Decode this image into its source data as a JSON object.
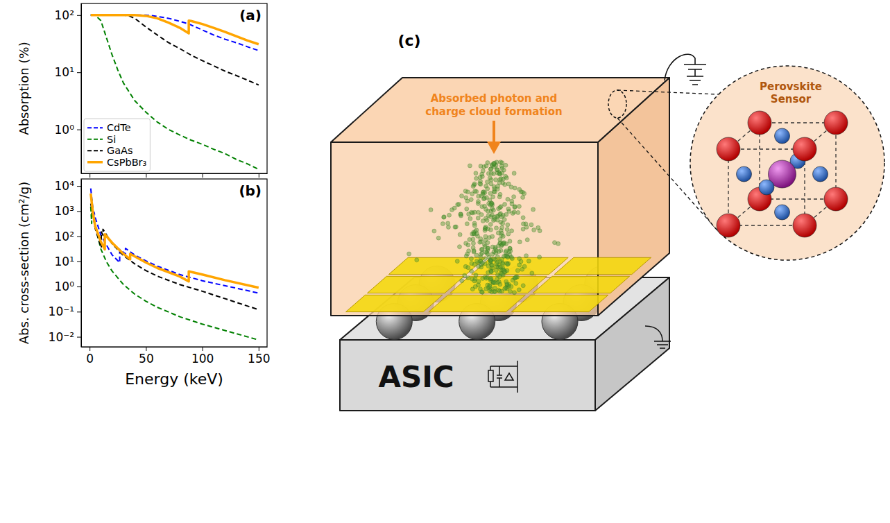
{
  "chart_data": [
    {
      "type": "line",
      "title": "(a)",
      "y_label": "Absorption (%)",
      "log": "y",
      "xlim": [
        -7.5,
        157.5
      ],
      "xticks": [
        0,
        50,
        100,
        150
      ],
      "ylim": [
        0.17,
        160
      ],
      "yticks": [
        {
          "value": 1,
          "label": "10⁰"
        },
        {
          "value": 10,
          "label": "10¹"
        },
        {
          "value": 100,
          "label": "10²"
        }
      ],
      "tick_labels": "y",
      "legend": "lower left",
      "series": [
        {
          "name": "CdTe",
          "color": "blue",
          "line_style": "dashed",
          "x": [
            1,
            10,
            20,
            30,
            40,
            50,
            55,
            60,
            70,
            80,
            88,
            100,
            110,
            120,
            130,
            140,
            150
          ],
          "values": [
            100,
            100,
            100,
            100,
            100,
            100,
            98,
            95,
            88,
            78,
            70,
            55,
            45,
            38,
            33,
            28,
            24
          ]
        },
        {
          "name": "Si",
          "color": "green",
          "line_style": "dashed",
          "x": [
            1,
            5,
            10,
            15,
            20,
            25,
            30,
            40,
            50,
            60,
            70,
            80,
            90,
            100,
            110,
            120,
            130,
            140,
            150
          ],
          "values": [
            100,
            100,
            80,
            40,
            20,
            11,
            6.5,
            3.2,
            2.0,
            1.35,
            1.0,
            0.8,
            0.65,
            0.55,
            0.45,
            0.38,
            0.3,
            0.25,
            0.2
          ]
        },
        {
          "name": "GaAs",
          "color": "black",
          "line_style": "dashed",
          "x": [
            1,
            10,
            20,
            30,
            35,
            40,
            50,
            60,
            70,
            80,
            90,
            100,
            110,
            120,
            130,
            140,
            150
          ],
          "values": [
            100,
            100,
            100,
            100,
            97,
            88,
            62,
            45,
            33,
            26,
            20,
            16,
            13,
            10.5,
            8.8,
            7.3,
            6
          ]
        },
        {
          "name": "CsPbBr₃",
          "color": "orange",
          "line_style": "solid",
          "x": [
            1,
            10,
            20,
            30,
            35.98,
            35.98,
            40,
            50,
            60,
            70,
            80,
            88,
            88,
            90,
            100,
            110,
            120,
            130,
            140,
            150
          ],
          "values": [
            100,
            100,
            100,
            100,
            100,
            100,
            100,
            97,
            88,
            74,
            60,
            48,
            80,
            79,
            70,
            60,
            51,
            43,
            36,
            31
          ]
        }
      ]
    },
    {
      "type": "line",
      "title": "(b)",
      "x_label": "Energy (keV)",
      "y_label": "Abs. cross-section (cm²/g)",
      "log": "y",
      "xlim": [
        -7.5,
        157.5
      ],
      "xticks": [
        0,
        50,
        100,
        150
      ],
      "ylim": [
        0.004,
        19000
      ],
      "yticks": [
        {
          "value": 0.01,
          "label": "10⁻²"
        },
        {
          "value": 0.1,
          "label": "10⁻¹"
        },
        {
          "value": 1,
          "label": "10⁰"
        },
        {
          "value": 10,
          "label": "10¹"
        },
        {
          "value": 100,
          "label": "10²"
        },
        {
          "value": 1000,
          "label": "10³"
        },
        {
          "value": 10000,
          "label": "10⁴"
        }
      ],
      "series": [
        {
          "color": "blue",
          "line_style": "dashed",
          "x": [
            1,
            3,
            4.0,
            4.0,
            5,
            10,
            20,
            26.71,
            26.71,
            31.81,
            31.81,
            40,
            50,
            60,
            80,
            100,
            150
          ],
          "values": [
            8000,
            1100,
            600,
            900,
            550,
            110,
            18,
            9,
            30,
            20,
            33,
            18,
            10.5,
            6.5,
            3,
            1.7,
            0.55
          ]
        },
        {
          "color": "green",
          "line_style": "dashed",
          "x": [
            1,
            1.84,
            1.84,
            3,
            5,
            10,
            15,
            20,
            30,
            40,
            50,
            60,
            80,
            100,
            150
          ],
          "values": [
            1500,
            320,
            3000,
            950,
            240,
            31,
            9.5,
            4.1,
            1.2,
            0.5,
            0.26,
            0.15,
            0.063,
            0.032,
            0.0075
          ]
        },
        {
          "color": "black",
          "line_style": "dashed",
          "x": [
            1,
            3,
            5,
            10.37,
            10.37,
            11.87,
            11.87,
            20,
            30,
            40,
            50,
            60,
            80,
            100,
            150
          ],
          "values": [
            2000,
            700,
            200,
            35,
            150,
            110,
            190,
            50,
            17,
            8,
            4.3,
            2.6,
            1.2,
            0.65,
            0.12
          ]
        },
        {
          "color": "orange",
          "line_style": "solid",
          "x": [
            1,
            3,
            5,
            10,
            13.47,
            13.47,
            15.86,
            20,
            30,
            35.98,
            35.98,
            50,
            60,
            80,
            88,
            88,
            100,
            120,
            150
          ],
          "values": [
            5000,
            800,
            250,
            60,
            30,
            120,
            90,
            55,
            20,
            12,
            20,
            9,
            5.5,
            2.5,
            1.6,
            4,
            3,
            1.8,
            0.9
          ]
        }
      ]
    }
  ],
  "diagram": {
    "label": "(c)",
    "annotation": "Absorbed photon and charge cloud formation",
    "chip": "ASIC",
    "inset_title": "Perovskite Sensor"
  }
}
